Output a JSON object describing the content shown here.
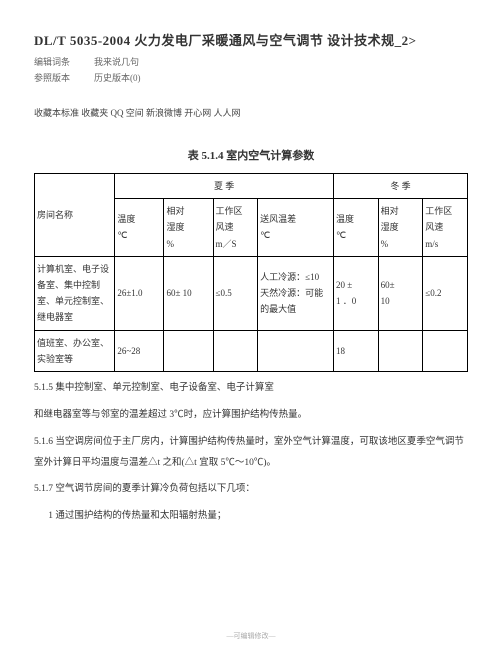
{
  "title": "DL/T 5035-2004 火力发电厂采暖通风与空气调节 设计技术规_2>",
  "meta": {
    "editLabel": "编辑词条",
    "editVal": "我来说几句",
    "verLabel": "参照版本",
    "verVal": "历史版本(0)"
  },
  "share": "收藏本标准 收藏夹 QQ 空间 新浪微博 开心网 人人网",
  "table": {
    "caption": "表 5.1.4 室内空气计算参数",
    "head": {
      "room": "房间名称",
      "summer": "夏  季",
      "winter": "冬  季",
      "temp": "温度\n℃",
      "rh": "相对\n湿度\n%",
      "wind": "工作区\n风速\nm／S",
      "wind2": "工作区\n风速\nm/s",
      "supplyDiff": "送风温差\n℃"
    },
    "rows": [
      {
        "room": "计算机室、电子设\n备室、集中控制\n室、单元控制室、\n继电器室",
        "sTemp": "26±1.0",
        "sRh": "60± 10",
        "sWind": "≤0.5",
        "sDiff": "人工冷源：≤10\n天然冷源：可能\n的最大值",
        "wTemp": "20 ±\n1 ．0",
        "wRh": "60±\n10",
        "wWind": "≤0.2"
      },
      {
        "room": "值班室、办公室、\n实验室等",
        "sTemp": "26~28",
        "sRh": "",
        "sWind": "",
        "sDiff": "",
        "wTemp": "18",
        "wRh": "",
        "wWind": ""
      }
    ]
  },
  "paras": {
    "p1": "5.1.5 集中控制室、单元控制室、电子设备室、电子计算室",
    "p2": "和继电器室等与邻室的温差超过 3℃时，应计算围护结构传热量。",
    "p3": "5.1.6 当空调房间位于主厂房内，计算围护结构传热量时，室外空气计算温度，可取该地区夏季空气调节室外计算日平均温度与温差△t 之和(△t 宜取 5℃～10℃)。",
    "p4": "5.1.7 空气调节房间的夏季计算冷负荷包括以下几项：",
    "p5": "1  通过围护结构的传热量和太阳辐射热量；"
  },
  "foot": "—可编辑修改—"
}
